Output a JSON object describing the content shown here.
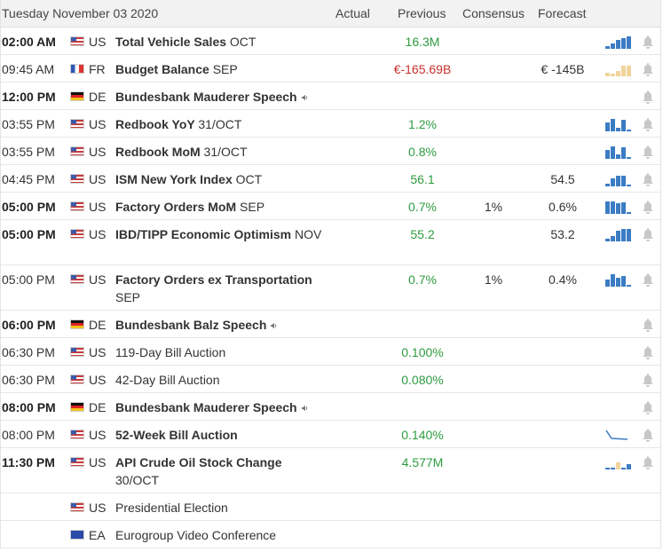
{
  "header": {
    "date": "Tuesday November 03 2020",
    "col_actual": "Actual",
    "col_previous": "Previous",
    "col_consensus": "Consensus",
    "col_forecast": "Forecast"
  },
  "colors": {
    "positive": "#2e9c3f",
    "negative": "#c9302c",
    "bar_blue": "#3b7cc4",
    "bar_tan": "#f0d49c"
  },
  "rows": [
    {
      "time": "02:00 AM",
      "country": "US",
      "event": "Total Vehicle Sales",
      "period": "OCT",
      "actual": "",
      "previous": "16.3M",
      "consensus": "",
      "forecast": ""
    },
    {
      "time": "09:45 AM",
      "country": "FR",
      "event": "Budget Balance",
      "period": "SEP",
      "actual": "",
      "previous": "€-165.69B",
      "consensus": "",
      "forecast": "€ -145B"
    },
    {
      "time": "12:00 PM",
      "country": "DE",
      "event": "Bundesbank Mauderer Speech",
      "period": "",
      "actual": "",
      "previous": "",
      "consensus": "",
      "forecast": ""
    },
    {
      "time": "03:55 PM",
      "country": "US",
      "event": "Redbook YoY",
      "period": "31/OCT",
      "actual": "",
      "previous": "1.2%",
      "consensus": "",
      "forecast": ""
    },
    {
      "time": "03:55 PM",
      "country": "US",
      "event": "Redbook MoM",
      "period": "31/OCT",
      "actual": "",
      "previous": "0.8%",
      "consensus": "",
      "forecast": ""
    },
    {
      "time": "04:45 PM",
      "country": "US",
      "event": "ISM New York Index",
      "period": "OCT",
      "actual": "",
      "previous": "56.1",
      "consensus": "",
      "forecast": "54.5"
    },
    {
      "time": "05:00 PM",
      "country": "US",
      "event": "Factory Orders MoM",
      "period": "SEP",
      "actual": "",
      "previous": "0.7%",
      "consensus": "1%",
      "forecast": "0.6%"
    },
    {
      "time": "05:00 PM",
      "country": "US",
      "event": "IBD/TIPP Economic Optimism",
      "period": "NOV",
      "actual": "",
      "previous": "55.2",
      "consensus": "",
      "forecast": "53.2"
    },
    {
      "time": "05:00 PM",
      "country": "US",
      "event": "Factory Orders ex Transportation",
      "period": "SEP",
      "actual": "",
      "previous": "0.7%",
      "consensus": "1%",
      "forecast": "0.4%"
    },
    {
      "time": "06:00 PM",
      "country": "DE",
      "event": "Bundesbank Balz Speech",
      "period": "",
      "actual": "",
      "previous": "",
      "consensus": "",
      "forecast": ""
    },
    {
      "time": "06:30 PM",
      "country": "US",
      "event": "119-Day Bill Auction",
      "period": "",
      "actual": "",
      "previous": "0.100%",
      "consensus": "",
      "forecast": ""
    },
    {
      "time": "06:30 PM",
      "country": "US",
      "event": "42-Day Bill Auction",
      "period": "",
      "actual": "",
      "previous": "0.080%",
      "consensus": "",
      "forecast": ""
    },
    {
      "time": "08:00 PM",
      "country": "DE",
      "event": "Bundesbank Mauderer Speech",
      "period": "",
      "actual": "",
      "previous": "",
      "consensus": "",
      "forecast": ""
    },
    {
      "time": "08:00 PM",
      "country": "US",
      "event": "52-Week Bill Auction",
      "period": "",
      "actual": "",
      "previous": "0.140%",
      "consensus": "",
      "forecast": ""
    },
    {
      "time": "11:30 PM",
      "country": "US",
      "event": "API Crude Oil Stock Change",
      "period": "30/OCT",
      "actual": "",
      "previous": "4.577M",
      "consensus": "",
      "forecast": ""
    },
    {
      "time": "",
      "country": "US",
      "event": "Presidential Election",
      "period": "",
      "actual": "",
      "previous": "",
      "consensus": "",
      "forecast": ""
    },
    {
      "time": "",
      "country": "EA",
      "event": "Eurogroup Video Conference",
      "period": "",
      "actual": "",
      "previous": "",
      "consensus": "",
      "forecast": ""
    }
  ]
}
